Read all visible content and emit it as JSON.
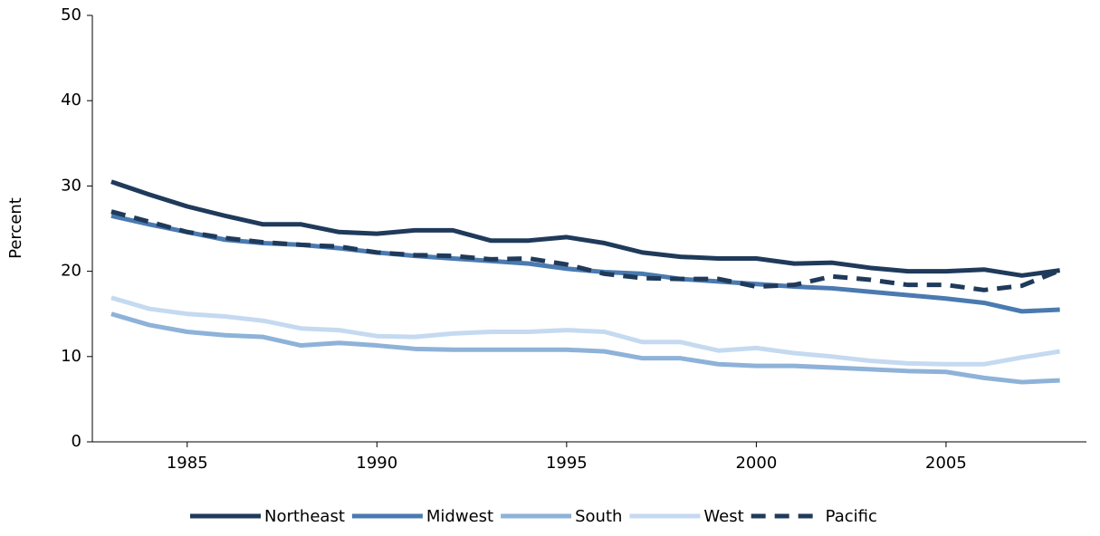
{
  "chart_data": {
    "type": "line",
    "y_label": "Percent",
    "x": [
      1983,
      1984,
      1985,
      1986,
      1987,
      1988,
      1989,
      1990,
      1991,
      1992,
      1993,
      1994,
      1995,
      1996,
      1997,
      1998,
      1999,
      2000,
      2001,
      2002,
      2003,
      2004,
      2005,
      2006,
      2007,
      2008
    ],
    "series": [
      {
        "name": "Northeast",
        "color": "#1f3a5a",
        "dash": false,
        "values": [
          30.5,
          29,
          27.6,
          26.5,
          25.5,
          25.5,
          24.6,
          24.4,
          24.8,
          24.8,
          23.6,
          23.6,
          24,
          23.3,
          22.2,
          21.7,
          21.5,
          21.5,
          20.9,
          21,
          20.4,
          20,
          20,
          20.2,
          19.5,
          20.1
        ]
      },
      {
        "name": "Midwest",
        "color": "#4a7ab0",
        "dash": false,
        "values": [
          26.5,
          25.5,
          24.6,
          23.7,
          23.3,
          23.1,
          22.7,
          22.2,
          21.8,
          21.5,
          21.2,
          20.9,
          20.3,
          19.9,
          19.7,
          19.1,
          18.8,
          18.5,
          18.2,
          18,
          17.6,
          17.2,
          16.8,
          16.3,
          15.3,
          15.5
        ]
      },
      {
        "name": "South",
        "color": "#8eb2d8",
        "dash": false,
        "values": [
          15,
          13.7,
          12.9,
          12.5,
          12.3,
          11.3,
          11.6,
          11.3,
          10.9,
          10.8,
          10.8,
          10.8,
          10.8,
          10.6,
          9.8,
          9.8,
          9.1,
          8.9,
          8.9,
          8.7,
          8.5,
          8.3,
          8.2,
          7.5,
          7,
          7.2
        ]
      },
      {
        "name": "West",
        "color": "#c5daf0",
        "dash": false,
        "values": [
          16.9,
          15.6,
          15,
          14.7,
          14.2,
          13.3,
          13.1,
          12.4,
          12.3,
          12.7,
          12.9,
          12.9,
          13.1,
          12.9,
          11.7,
          11.7,
          10.7,
          11,
          10.4,
          10,
          9.5,
          9.2,
          9.1,
          9.1,
          9.9,
          10.6
        ]
      },
      {
        "name": "Pacific",
        "color": "#1f3a5a",
        "dash": true,
        "values": [
          27,
          25.8,
          24.6,
          23.9,
          23.4,
          23.1,
          22.9,
          22.2,
          21.9,
          21.8,
          21.4,
          21.5,
          20.8,
          19.7,
          19.2,
          19.1,
          19.1,
          18.2,
          18.4,
          19.4,
          19,
          18.4,
          18.4,
          17.8,
          18.3,
          20.1
        ]
      }
    ],
    "xlim": [
      1982.5,
      2008.7
    ],
    "xticks": [
      1985,
      1990,
      1995,
      2000,
      2005
    ],
    "ylim": [
      0,
      50
    ],
    "yticks": [
      0,
      10,
      20,
      30,
      40,
      50
    ]
  }
}
